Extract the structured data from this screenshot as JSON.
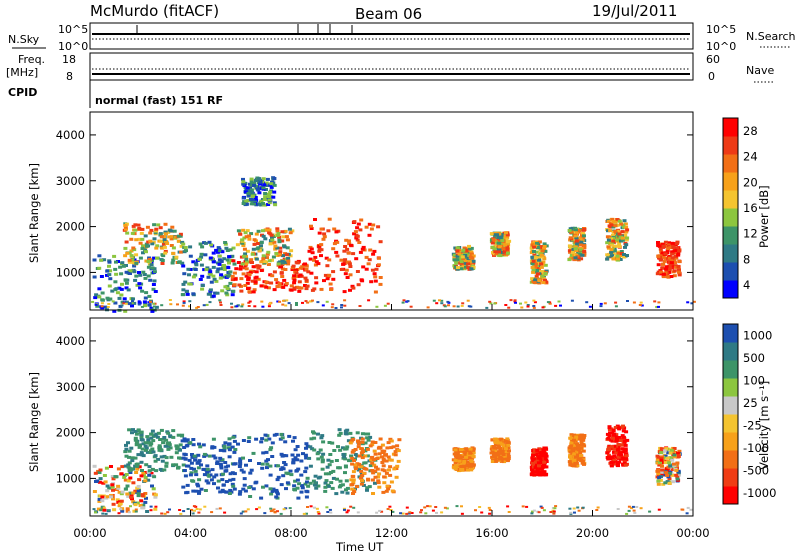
{
  "header": {
    "station": "McMurdo (fitACF)",
    "beam": "Beam 06",
    "date": "19/Jul/2011"
  },
  "status_panel": {
    "nsky_label": "N.Sky",
    "nsky_ticks": [
      "10^5",
      "10^0"
    ],
    "nsearch_label": "N.Search",
    "nsearch_ticks": [
      "10^5",
      "10^0"
    ],
    "freq_label": "Freq.",
    "freq_unit": "[MHz]",
    "freq_ticks": [
      "18",
      "8"
    ],
    "nave_label": "Nave",
    "nave_ticks": [
      "60",
      "0"
    ],
    "cpid_label": "CPID",
    "cpid_text": "normal (fast) 151 RF"
  },
  "chart_data": [
    {
      "type": "heatmap",
      "name": "power",
      "ylabel": "Slant Range [km]",
      "xlabel": "Time UT",
      "ylim": [
        180,
        4500
      ],
      "xlim_hours": [
        0,
        24
      ],
      "y_ticks": [
        "4000",
        "3000",
        "2000",
        "1000"
      ],
      "x_ticks": [
        "00:00",
        "04:00",
        "08:00",
        "12:00",
        "16:00",
        "20:00",
        "00:00"
      ],
      "colorbar": {
        "label": "Power [dB]",
        "ticks": [
          "28",
          "24",
          "20",
          "16",
          "12",
          "8",
          "4"
        ],
        "colors": [
          "#0000ff",
          "#1d4fb0",
          "#2f7a85",
          "#3d9468",
          "#8cc63f",
          "#f4c430",
          "#f7a11a",
          "#f26f16",
          "#ee3a16",
          "#ff0000"
        ]
      },
      "regions": [
        {
          "t": [
            0.1,
            2.6
          ],
          "r": [
            180,
            1400
          ],
          "level": "low"
        },
        {
          "t": [
            1.3,
            3.6
          ],
          "r": [
            1200,
            2100
          ],
          "level": "mid"
        },
        {
          "t": [
            3.6,
            5.7
          ],
          "r": [
            500,
            1700
          ],
          "level": "low"
        },
        {
          "t": [
            5.6,
            8.6
          ],
          "r": [
            600,
            1300
          ],
          "level": "high"
        },
        {
          "t": [
            5.8,
            8.0
          ],
          "r": [
            1200,
            2000
          ],
          "level": "mid"
        },
        {
          "t": [
            8.6,
            11.5
          ],
          "r": [
            600,
            2200
          ],
          "level": "high"
        },
        {
          "t": [
            6.0,
            7.3
          ],
          "r": [
            2500,
            3100
          ],
          "level": "low"
        },
        {
          "t": [
            14.4,
            15.2
          ],
          "r": [
            1100,
            1600
          ],
          "level": "mid"
        },
        {
          "t": [
            15.9,
            16.6
          ],
          "r": [
            1400,
            1900
          ],
          "level": "mid"
        },
        {
          "t": [
            17.5,
            18.1
          ],
          "r": [
            800,
            1700
          ],
          "level": "mid"
        },
        {
          "t": [
            19.0,
            19.6
          ],
          "r": [
            1300,
            2000
          ],
          "level": "mid"
        },
        {
          "t": [
            20.5,
            21.3
          ],
          "r": [
            1300,
            2200
          ],
          "level": "mid"
        },
        {
          "t": [
            22.5,
            23.4
          ],
          "r": [
            900,
            1700
          ],
          "level": "high"
        }
      ]
    },
    {
      "type": "heatmap",
      "name": "velocity",
      "ylabel": "Slant Range [km]",
      "xlabel": "Time UT",
      "ylim": [
        180,
        4500
      ],
      "xlim_hours": [
        0,
        24
      ],
      "y_ticks": [
        "4000",
        "3000",
        "2000",
        "1000"
      ],
      "x_ticks": [
        "00:00",
        "04:00",
        "08:00",
        "12:00",
        "16:00",
        "20:00",
        "00:00"
      ],
      "colorbar": {
        "label": "Velocity [m s⁻¹]",
        "ticks": [
          "1000",
          "500",
          "100",
          "25",
          "-25",
          "-100",
          "-500",
          "-1000"
        ],
        "colors": [
          "#ff0000",
          "#f03c14",
          "#f26f16",
          "#f7a11a",
          "#f4c430",
          "#c8c8c8",
          "#8cc63f",
          "#3d9468",
          "#2f7a85",
          "#1d4fb0"
        ]
      },
      "regions": [
        {
          "t": [
            0.1,
            2.6
          ],
          "r": [
            300,
            1300
          ],
          "level": "mixed"
        },
        {
          "t": [
            1.3,
            3.6
          ],
          "r": [
            1200,
            2100
          ],
          "level": "green"
        },
        {
          "t": [
            3.6,
            5.7
          ],
          "r": [
            700,
            1900
          ],
          "level": "blue"
        },
        {
          "t": [
            5.6,
            8.6
          ],
          "r": [
            600,
            2000
          ],
          "level": "blue"
        },
        {
          "t": [
            8.6,
            11.3
          ],
          "r": [
            700,
            2100
          ],
          "level": "green"
        },
        {
          "t": [
            10.3,
            12.3
          ],
          "r": [
            700,
            1900
          ],
          "level": "orange"
        },
        {
          "t": [
            14.4,
            15.2
          ],
          "r": [
            1200,
            1700
          ],
          "level": "orange"
        },
        {
          "t": [
            15.9,
            16.6
          ],
          "r": [
            1400,
            1900
          ],
          "level": "orange"
        },
        {
          "t": [
            17.5,
            18.1
          ],
          "r": [
            1100,
            1700
          ],
          "level": "red"
        },
        {
          "t": [
            19.0,
            19.6
          ],
          "r": [
            1300,
            2000
          ],
          "level": "orange"
        },
        {
          "t": [
            20.5,
            21.3
          ],
          "r": [
            1300,
            2200
          ],
          "level": "red"
        },
        {
          "t": [
            22.5,
            23.4
          ],
          "r": [
            900,
            1700
          ],
          "level": "mixed"
        }
      ]
    }
  ]
}
